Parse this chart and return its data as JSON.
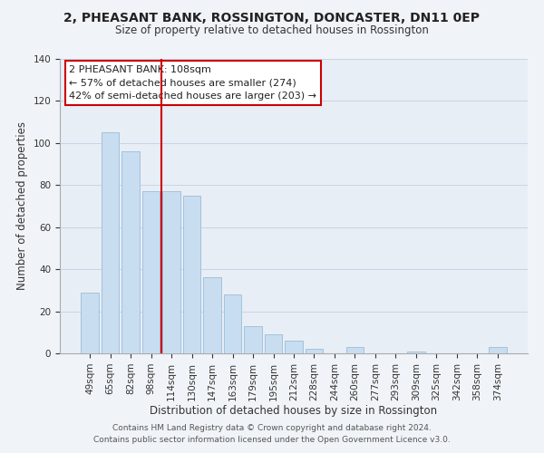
{
  "title": "2, PHEASANT BANK, ROSSINGTON, DONCASTER, DN11 0EP",
  "subtitle": "Size of property relative to detached houses in Rossington",
  "xlabel": "Distribution of detached houses by size in Rossington",
  "ylabel": "Number of detached properties",
  "footer_line1": "Contains HM Land Registry data © Crown copyright and database right 2024.",
  "footer_line2": "Contains public sector information licensed under the Open Government Licence v3.0.",
  "bar_labels": [
    "49sqm",
    "65sqm",
    "82sqm",
    "98sqm",
    "114sqm",
    "130sqm",
    "147sqm",
    "163sqm",
    "179sqm",
    "195sqm",
    "212sqm",
    "228sqm",
    "244sqm",
    "260sqm",
    "277sqm",
    "293sqm",
    "309sqm",
    "325sqm",
    "342sqm",
    "358sqm",
    "374sqm"
  ],
  "bar_values": [
    29,
    105,
    96,
    77,
    77,
    75,
    36,
    28,
    13,
    9,
    6,
    2,
    0,
    3,
    0,
    0,
    1,
    0,
    0,
    0,
    3
  ],
  "bar_color": "#c8ddf0",
  "bar_edge_color": "#9bbdd8",
  "vline_color": "#cc0000",
  "annotation_title": "2 PHEASANT BANK: 108sqm",
  "annotation_line2": "← 57% of detached houses are smaller (274)",
  "annotation_line3": "42% of semi-detached houses are larger (203) →",
  "annotation_box_edge": "#cc0000",
  "ylim": [
    0,
    140
  ],
  "background_color": "#f0f4f8",
  "plot_background": "#e8eef5"
}
